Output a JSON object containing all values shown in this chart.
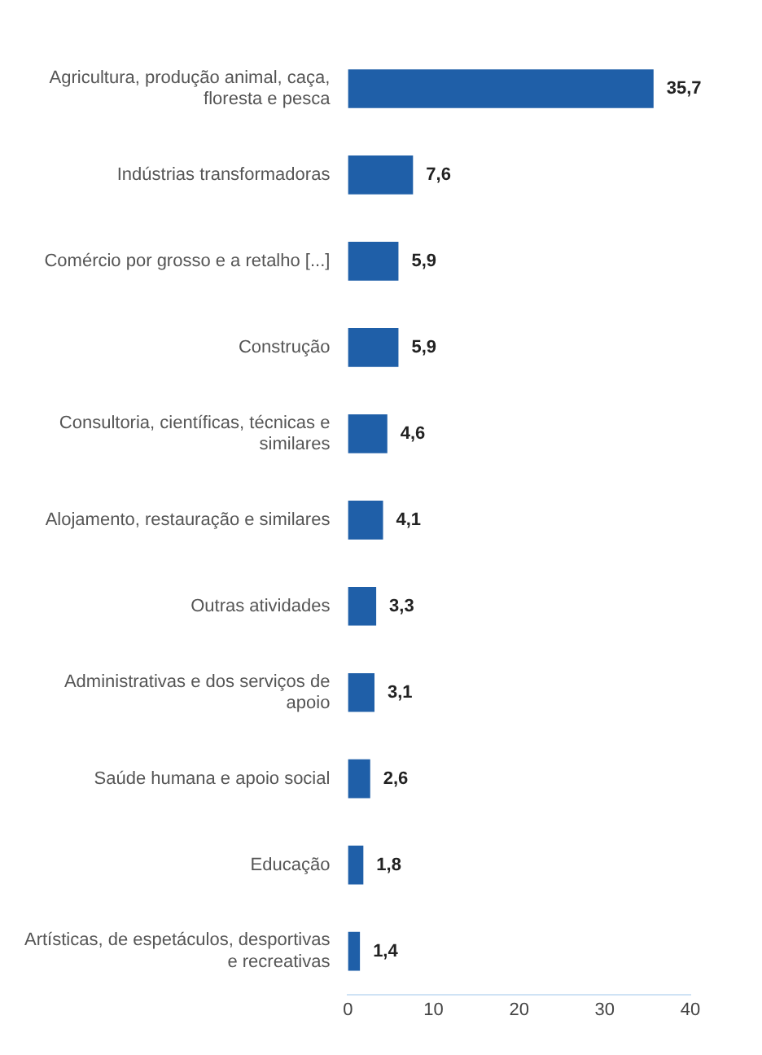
{
  "chart_data": {
    "type": "bar",
    "orientation": "horizontal",
    "categories": [
      "Agricultura, produção animal, caça, floresta e pesca",
      "Indústrias transformadoras",
      "Comércio por grosso e a retalho [...]",
      "Construção",
      "Consultoria, científicas, técnicas e similares",
      "Alojamento, restauração e similares",
      "Outras atividades",
      "Administrativas e dos serviços de apoio",
      "Saúde humana e apoio social",
      "Educação",
      "Artísticas, de espetáculos, desportivas e recreativas"
    ],
    "values": [
      35.7,
      7.6,
      5.9,
      5.9,
      4.6,
      4.1,
      3.3,
      3.1,
      2.6,
      1.8,
      1.4
    ],
    "value_labels": [
      "35,7",
      "7,6",
      "5,9",
      "5,9",
      "4,6",
      "4,1",
      "3,3",
      "3,1",
      "2,6",
      "1,8",
      "1,4"
    ],
    "color": "#1f5fa8",
    "xlim": [
      0,
      40
    ],
    "xticks": [
      0,
      10,
      20,
      30,
      40
    ],
    "grid": false,
    "legend": false
  }
}
